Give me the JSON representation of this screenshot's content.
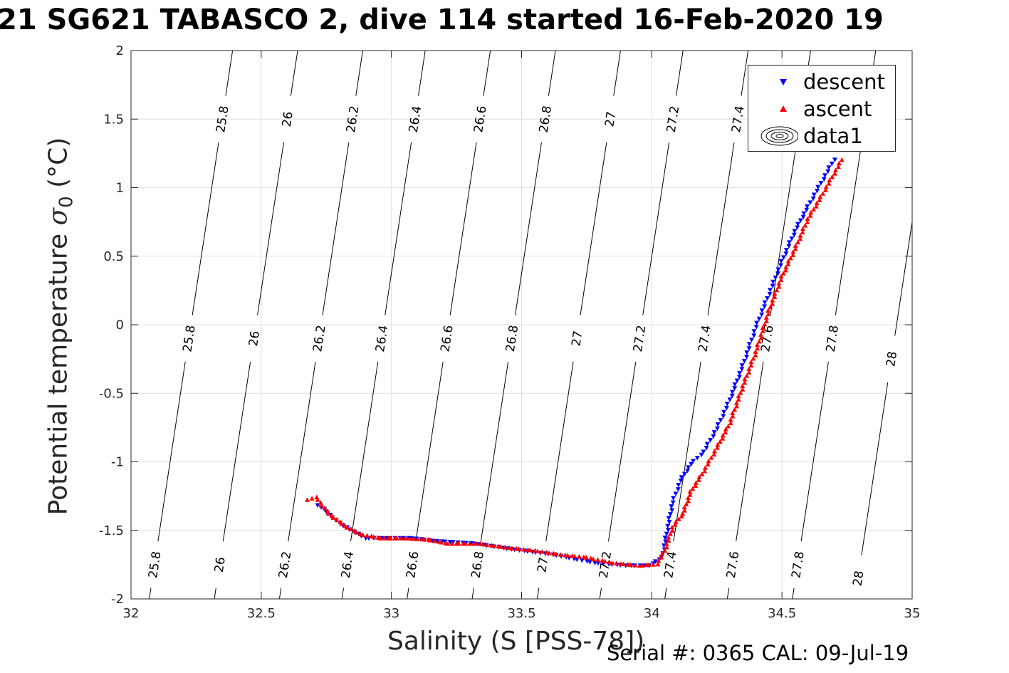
{
  "title": "21 SG621 TABASCO 2, dive 114 started 16-Feb-2020 19",
  "footer": "Serial #: 0365  CAL: 09-Jul-19",
  "chart_data": {
    "type": "scatter",
    "title": "21 SG621 TABASCO 2, dive 114 started 16-Feb-2020 19",
    "xlabel": "Salinity (S [PSS-78])",
    "ylabel_text": "Potential temperature ",
    "ylabel_symbol": "σ",
    "ylabel_sub": "0",
    "ylabel_unit": " (°C)",
    "xlim": [
      32,
      35
    ],
    "ylim": [
      -2,
      2
    ],
    "xticks": [
      32,
      32.5,
      33,
      33.5,
      34,
      34.5,
      35
    ],
    "yticks": [
      -2,
      -1.5,
      -1,
      -0.5,
      0,
      0.5,
      1,
      1.5,
      2
    ],
    "xtick_labels": [
      "32",
      "32.5",
      "33",
      "33.5",
      "34",
      "34.5",
      "35"
    ],
    "ytick_labels": [
      "-2",
      "-1.5",
      "-1",
      "-0.5",
      "0",
      "0.5",
      "1",
      "1.5",
      "2"
    ],
    "grid": true,
    "legend_position": "top-right",
    "colors": {
      "descent": "#0000ff",
      "ascent": "#ff0000",
      "contour": "#000000",
      "grid": "#dfdfdf"
    },
    "density_contours": {
      "levels": [
        "25.8",
        "26",
        "26.2",
        "26.4",
        "26.6",
        "26.8",
        "27",
        "27.2",
        "27.4",
        "27.6",
        "27.8",
        "28"
      ],
      "s_at_theta_minus2": [
        32.07,
        32.32,
        32.57,
        32.81,
        33.06,
        33.31,
        33.56,
        33.8,
        34.05,
        34.29,
        34.54,
        34.78
      ],
      "ds_per_degree": 0.08,
      "label_thetas": [
        [
          -1.75,
          -0.1,
          1.5
        ],
        [
          -1.75,
          -0.1,
          1.5
        ],
        [
          -1.75,
          -0.1,
          1.5
        ],
        [
          -1.75,
          -0.1,
          1.5
        ],
        [
          -1.75,
          -0.1,
          1.5
        ],
        [
          -1.75,
          -0.1,
          1.5
        ],
        [
          -1.75,
          -0.1,
          1.5
        ],
        [
          -1.75,
          -0.1,
          1.5
        ],
        [
          -1.75,
          -0.1,
          1.5
        ],
        [
          -1.75,
          -0.1,
          1.5
        ],
        [
          -1.75,
          -0.1,
          1.5
        ],
        [
          -1.85,
          -0.25,
          1.3
        ]
      ]
    },
    "series": [
      {
        "name": "descent",
        "marker": "triangle-down",
        "x": [
          32.72,
          32.74,
          32.8,
          32.9,
          33.08,
          33.16,
          33.32,
          33.46,
          33.62,
          33.78,
          33.9,
          33.99,
          34.04,
          34.06,
          34.08,
          34.11,
          34.15,
          34.2,
          34.25,
          34.3,
          34.35,
          34.4,
          34.45,
          34.5,
          34.55,
          34.6,
          34.65,
          34.7
        ],
        "y": [
          -1.32,
          -1.35,
          -1.45,
          -1.56,
          -1.56,
          -1.58,
          -1.6,
          -1.64,
          -1.68,
          -1.74,
          -1.76,
          -1.76,
          -1.7,
          -1.5,
          -1.3,
          -1.14,
          -1.02,
          -0.93,
          -0.76,
          -0.55,
          -0.3,
          -0.02,
          0.22,
          0.46,
          0.68,
          0.86,
          1.03,
          1.2
        ]
      },
      {
        "name": "ascent",
        "marker": "triangle-up",
        "x": [
          32.68,
          32.71,
          32.76,
          32.82,
          32.88,
          32.96,
          33.05,
          33.14,
          33.22,
          33.34,
          33.45,
          33.55,
          33.65,
          33.75,
          33.85,
          33.95,
          34.02,
          34.05,
          34.08,
          34.12,
          34.15,
          34.2,
          34.25,
          34.3,
          34.35,
          34.4,
          34.45,
          34.5,
          34.55,
          34.6,
          34.65,
          34.7,
          34.73
        ],
        "y": [
          -1.28,
          -1.26,
          -1.38,
          -1.47,
          -1.53,
          -1.56,
          -1.56,
          -1.57,
          -1.6,
          -1.6,
          -1.63,
          -1.65,
          -1.68,
          -1.7,
          -1.74,
          -1.76,
          -1.75,
          -1.65,
          -1.48,
          -1.38,
          -1.22,
          -1.07,
          -0.9,
          -0.72,
          -0.45,
          -0.2,
          0.1,
          0.35,
          0.55,
          0.77,
          0.93,
          1.1,
          1.2
        ]
      }
    ],
    "legend": [
      "descent",
      "ascent",
      "data1"
    ]
  }
}
